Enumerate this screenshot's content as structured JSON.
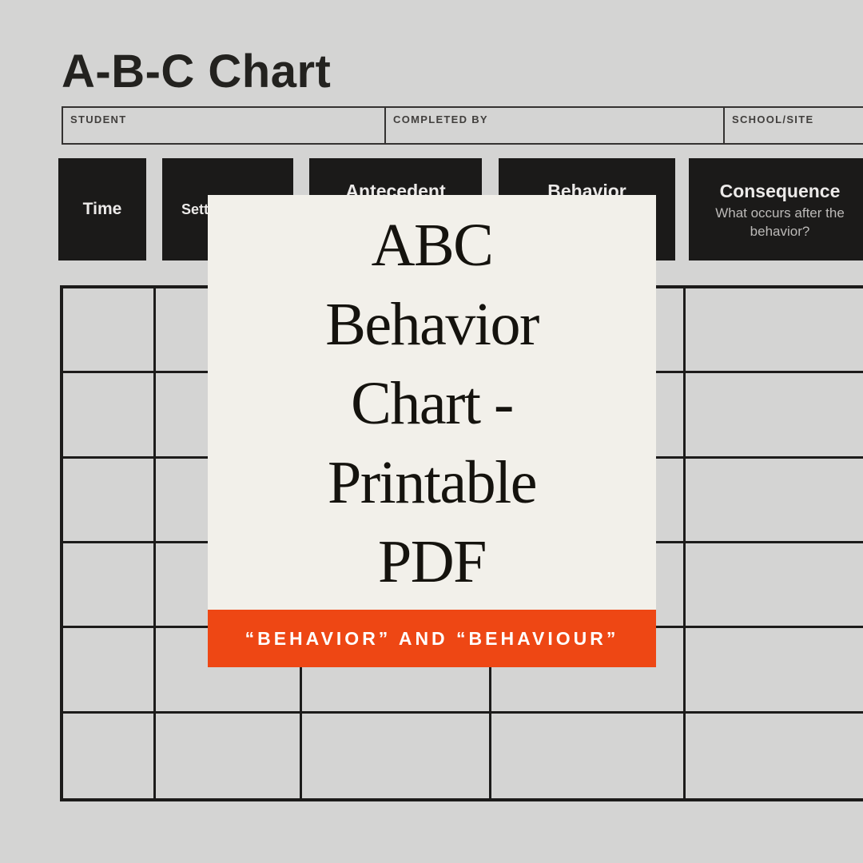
{
  "colors": {
    "page_background": "#d4d4d3",
    "ink": "#23221f",
    "header_block_background": "#1b1a19",
    "header_block_text": "#eceae9",
    "header_block_subtext": "#bcbab8",
    "table_line": "#1c1b1a",
    "card_background": "#f2f0ea",
    "banner_background": "#ee4714",
    "banner_text": "#ffffff"
  },
  "document": {
    "title": "A-B-C Chart",
    "fields": [
      {
        "label": "STUDENT"
      },
      {
        "label": "COMPLETED BY"
      },
      {
        "label": "SCHOOL/SITE"
      }
    ],
    "columns": [
      {
        "label": "Time"
      },
      {
        "label": "Setting"
      },
      {
        "label": "Antecedent"
      },
      {
        "label": "Behavior"
      },
      {
        "label": "Consequence",
        "subtitle": "What occurs after the behavior?"
      }
    ],
    "grid": {
      "rows": 6,
      "cols": 5
    }
  },
  "overlay": {
    "title": "ABC Behavior Chart - Printable PDF",
    "title_lines": [
      "ABC",
      "Behavior",
      "Chart -",
      "Printable",
      "PDF"
    ],
    "banner": "“BEHAVIOR” AND “BEHAVIOUR”"
  }
}
